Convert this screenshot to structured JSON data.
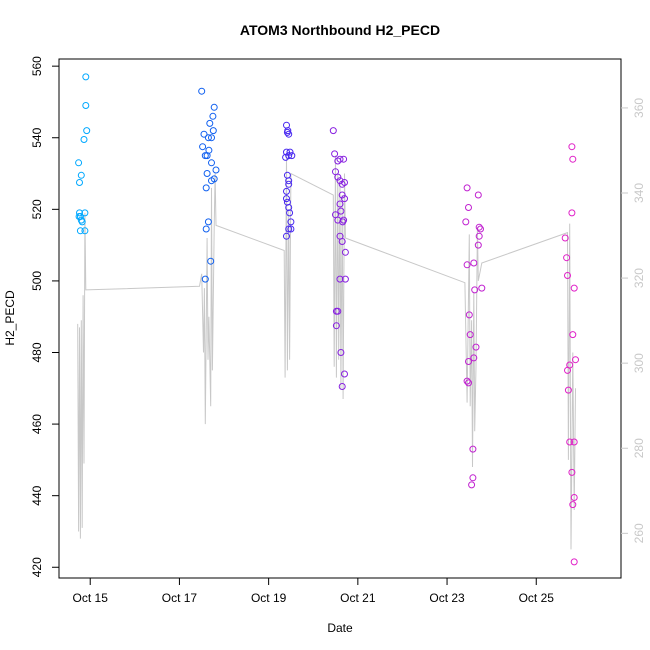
{
  "chart_data": {
    "type": "scatter",
    "title": "ATOM3 Northbound H2_PECD",
    "xlabel": "Date",
    "ylabel": "H2_PECD",
    "xlim": [
      14.3,
      26.9
    ],
    "ylim": [
      417,
      562
    ],
    "y2lim": [
      249.5,
      371.5
    ],
    "x_ticks": [
      15,
      17,
      19,
      21,
      23,
      25
    ],
    "x_tick_labels": [
      "Oct 15",
      "Oct 17",
      "Oct 19",
      "Oct 21",
      "Oct 23",
      "Oct 25"
    ],
    "y_ticks": [
      420,
      440,
      460,
      480,
      500,
      520,
      540,
      560
    ],
    "y2_ticks": [
      260,
      280,
      300,
      320,
      340,
      360
    ],
    "colors": {
      "axis": "#000000",
      "line": "#c8c8c8",
      "secondary_axis": "#c8c8c8"
    },
    "series": [
      {
        "color": "#00a8ff",
        "points": [
          [
            14.74,
            533
          ],
          [
            14.76,
            527.5
          ],
          [
            14.8,
            529.5
          ],
          [
            14.76,
            519
          ],
          [
            14.78,
            518
          ],
          [
            14.8,
            517
          ],
          [
            14.75,
            518
          ],
          [
            14.82,
            516.5
          ],
          [
            14.78,
            514
          ],
          [
            14.88,
            519
          ],
          [
            14.88,
            514
          ],
          [
            14.86,
            539.5
          ],
          [
            14.9,
            549
          ],
          [
            14.92,
            542
          ],
          [
            14.9,
            557
          ]
        ]
      },
      {
        "color": "#1060f0",
        "points": [
          [
            17.5,
            553
          ],
          [
            17.52,
            537.5
          ],
          [
            17.55,
            541
          ],
          [
            17.58,
            535
          ],
          [
            17.6,
            526
          ],
          [
            17.62,
            530
          ],
          [
            17.62,
            535
          ],
          [
            17.65,
            540
          ],
          [
            17.66,
            536.5
          ],
          [
            17.68,
            544
          ],
          [
            17.72,
            533
          ],
          [
            17.72,
            540
          ],
          [
            17.75,
            546
          ],
          [
            17.76,
            542
          ],
          [
            17.78,
            548.5
          ],
          [
            17.72,
            528
          ],
          [
            17.78,
            528.5
          ],
          [
            17.82,
            531
          ],
          [
            17.65,
            516.5
          ],
          [
            17.6,
            514.5
          ],
          [
            17.7,
            505.5
          ],
          [
            17.58,
            500.5
          ]
        ]
      },
      {
        "color": "#4828f0",
        "points": [
          [
            19.38,
            534.5
          ],
          [
            19.4,
            536
          ],
          [
            19.42,
            541.5
          ],
          [
            19.4,
            543.5
          ],
          [
            19.45,
            541
          ],
          [
            19.43,
            542
          ],
          [
            19.4,
            525
          ],
          [
            19.42,
            529.5
          ],
          [
            19.45,
            528
          ],
          [
            19.45,
            527
          ],
          [
            19.4,
            523
          ],
          [
            19.42,
            522
          ],
          [
            19.45,
            520.5
          ],
          [
            19.47,
            519
          ],
          [
            19.5,
            516.5
          ],
          [
            19.45,
            514.5
          ],
          [
            19.5,
            514.5
          ],
          [
            19.4,
            512.5
          ],
          [
            19.45,
            535
          ],
          [
            19.48,
            536
          ],
          [
            19.52,
            535
          ]
        ]
      },
      {
        "color": "#8820e0",
        "points": [
          [
            20.45,
            542
          ],
          [
            20.48,
            535.5
          ],
          [
            20.55,
            533.5
          ],
          [
            20.5,
            530.5
          ],
          [
            20.55,
            529
          ],
          [
            20.6,
            534
          ],
          [
            20.65,
            527
          ],
          [
            20.68,
            534
          ],
          [
            20.6,
            528
          ],
          [
            20.65,
            524
          ],
          [
            20.7,
            523
          ],
          [
            20.6,
            521.5
          ],
          [
            20.62,
            519.5
          ],
          [
            20.66,
            516.5
          ],
          [
            20.5,
            518.5
          ],
          [
            20.55,
            517
          ],
          [
            20.6,
            512.5
          ],
          [
            20.68,
            517
          ],
          [
            20.65,
            511
          ],
          [
            20.72,
            508
          ],
          [
            20.6,
            500.5
          ],
          [
            20.72,
            500.5
          ],
          [
            20.52,
            491.5
          ],
          [
            20.55,
            491.5
          ],
          [
            20.52,
            487.5
          ],
          [
            20.62,
            480
          ],
          [
            20.7,
            474
          ],
          [
            20.65,
            470.5
          ],
          [
            20.7,
            527.5
          ]
        ]
      },
      {
        "color": "#c020d0",
        "points": [
          [
            23.45,
            526
          ],
          [
            23.42,
            516.5
          ],
          [
            23.48,
            520.5
          ],
          [
            23.45,
            504.5
          ],
          [
            23.5,
            490.5
          ],
          [
            23.52,
            485
          ],
          [
            23.48,
            477.5
          ],
          [
            23.45,
            472
          ],
          [
            23.48,
            471.5
          ],
          [
            23.6,
            505
          ],
          [
            23.62,
            497.5
          ],
          [
            23.65,
            481.5
          ],
          [
            23.6,
            478.5
          ],
          [
            23.7,
            510
          ],
          [
            23.72,
            515
          ],
          [
            23.75,
            514.5
          ],
          [
            23.78,
            498
          ],
          [
            23.7,
            524
          ],
          [
            23.58,
            453
          ],
          [
            23.58,
            445
          ],
          [
            23.55,
            443
          ],
          [
            23.72,
            512.5
          ]
        ]
      },
      {
        "color": "#e020c8",
        "points": [
          [
            25.68,
            506.5
          ],
          [
            25.7,
            501.5
          ],
          [
            25.65,
            512
          ],
          [
            25.8,
            537.5
          ],
          [
            25.82,
            534
          ],
          [
            25.8,
            519
          ],
          [
            25.85,
            498
          ],
          [
            25.82,
            485
          ],
          [
            25.88,
            478
          ],
          [
            25.75,
            476.5
          ],
          [
            25.7,
            475
          ],
          [
            25.72,
            469.5
          ],
          [
            25.75,
            455
          ],
          [
            25.85,
            455
          ],
          [
            25.8,
            446.5
          ],
          [
            25.85,
            439.5
          ],
          [
            25.82,
            437.5
          ],
          [
            25.85,
            421.5
          ]
        ]
      }
    ],
    "line": [
      [
        14.72,
        488
      ],
      [
        14.74,
        430
      ],
      [
        14.76,
        487
      ],
      [
        14.78,
        428
      ],
      [
        14.8,
        489
      ],
      [
        14.82,
        431
      ],
      [
        14.84,
        496
      ],
      [
        14.86,
        449
      ],
      [
        14.88,
        519
      ],
      [
        14.9,
        497.5
      ],
      [
        17.45,
        498.5
      ],
      [
        17.5,
        502
      ],
      [
        17.54,
        480
      ],
      [
        17.56,
        498
      ],
      [
        17.58,
        460
      ],
      [
        17.62,
        512
      ],
      [
        17.64,
        478
      ],
      [
        17.66,
        490
      ],
      [
        17.7,
        465
      ],
      [
        17.72,
        526
      ],
      [
        17.74,
        475
      ],
      [
        17.78,
        515
      ],
      [
        17.8,
        530
      ],
      [
        17.82,
        515.5
      ],
      [
        19.35,
        508.5
      ],
      [
        19.37,
        473
      ],
      [
        19.4,
        535
      ],
      [
        19.42,
        475
      ],
      [
        19.45,
        520
      ],
      [
        19.47,
        478
      ],
      [
        19.5,
        530
      ],
      [
        20.45,
        524
      ],
      [
        20.47,
        476
      ],
      [
        20.5,
        535
      ],
      [
        20.52,
        473
      ],
      [
        20.55,
        530
      ],
      [
        20.57,
        478
      ],
      [
        20.6,
        528
      ],
      [
        20.62,
        470
      ],
      [
        20.65,
        524
      ],
      [
        20.67,
        467
      ],
      [
        20.7,
        530
      ],
      [
        20.72,
        512
      ],
      [
        23.4,
        499.5
      ],
      [
        23.45,
        466
      ],
      [
        23.5,
        513
      ],
      [
        23.52,
        465
      ],
      [
        23.55,
        489
      ],
      [
        23.57,
        448
      ],
      [
        23.6,
        497
      ],
      [
        23.62,
        458
      ],
      [
        23.65,
        476
      ],
      [
        23.68,
        515
      ],
      [
        23.7,
        500
      ],
      [
        23.78,
        505
      ],
      [
        25.7,
        513.5
      ],
      [
        25.72,
        450
      ],
      [
        25.75,
        516
      ],
      [
        25.78,
        425
      ],
      [
        25.82,
        480
      ],
      [
        25.85,
        436
      ],
      [
        25.88,
        470
      ]
    ]
  }
}
